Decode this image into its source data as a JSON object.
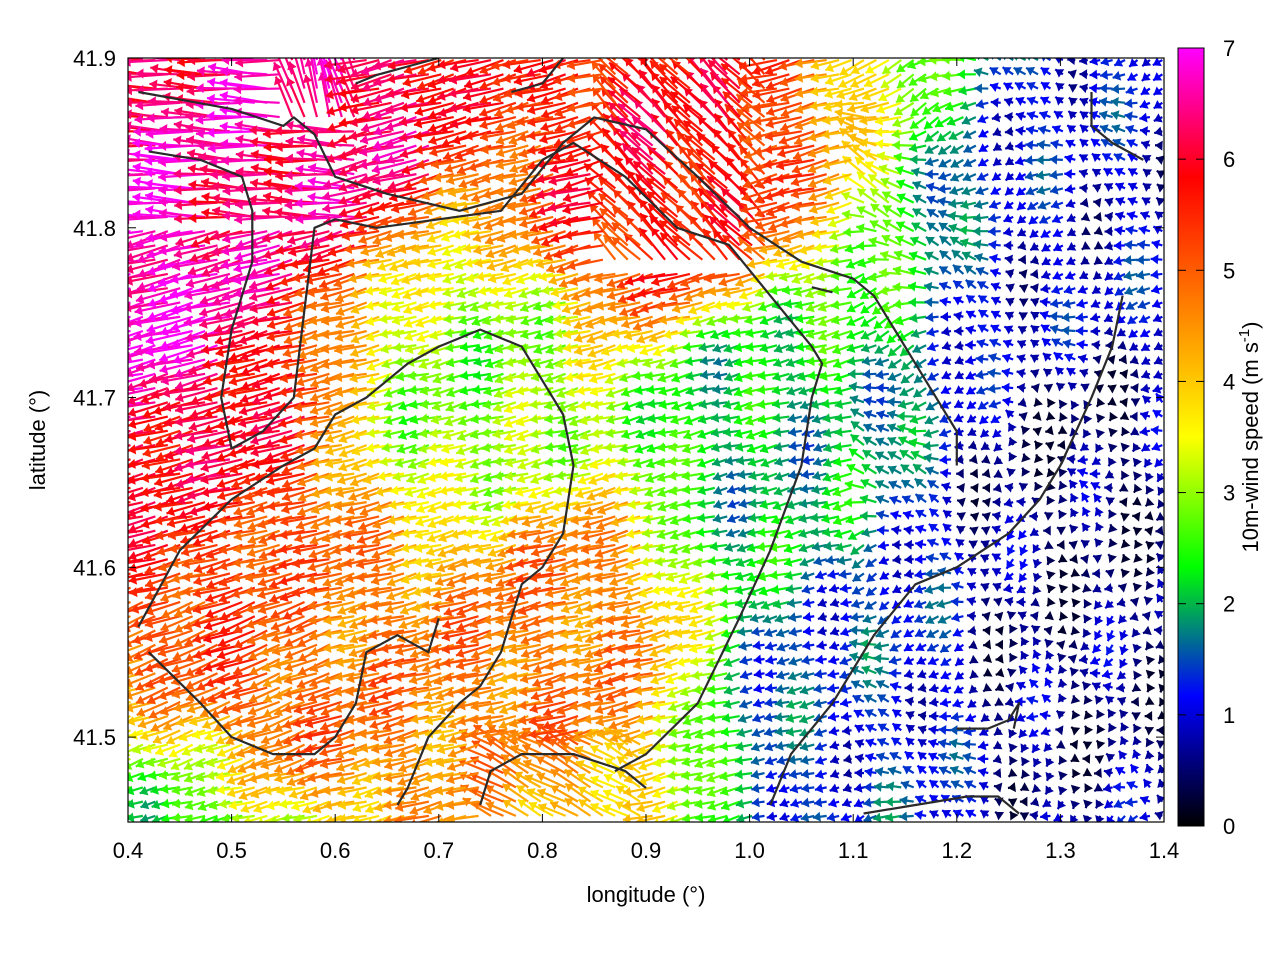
{
  "chart_data": {
    "type": "vector-field",
    "xlabel": "longitude (°)",
    "ylabel": "latitude (°)",
    "xlim": [
      0.4,
      1.4
    ],
    "ylim": [
      41.45,
      41.9
    ],
    "x_ticks": [
      "0.4",
      "0.5",
      "0.6",
      "0.7",
      "0.8",
      "0.9",
      "1.0",
      "1.1",
      "1.2",
      "1.3",
      "1.4"
    ],
    "y_ticks": [
      "41.5",
      "41.6",
      "41.7",
      "41.8",
      "41.9"
    ],
    "colorbar": {
      "label_main": "10m-wind speed (m s",
      "label_sup": "-1",
      "label_end": ")",
      "range": [
        0,
        7
      ],
      "ticks": [
        "0",
        "1",
        "2",
        "3",
        "4",
        "5",
        "6",
        "7"
      ],
      "colors": [
        "#000000",
        "#0000ff",
        "#00ff00",
        "#ffff00",
        "#ff8000",
        "#ff0000",
        "#ff00ff"
      ]
    },
    "wind_field": {
      "grid_spacing_deg": 0.012,
      "speed_hotspots": [
        {
          "lon": 0.41,
          "lat": 41.75,
          "speed": 7.0
        },
        {
          "lon": 0.45,
          "lat": 41.68,
          "speed": 6.2
        },
        {
          "lon": 0.48,
          "lat": 41.62,
          "speed": 5.4
        },
        {
          "lon": 0.52,
          "lat": 41.5,
          "speed": 6.0
        },
        {
          "lon": 0.93,
          "lat": 41.83,
          "speed": 5.8
        },
        {
          "lon": 0.82,
          "lat": 41.57,
          "speed": 4.8
        },
        {
          "lon": 0.6,
          "lat": 41.55,
          "speed": 4.8
        },
        {
          "lon": 0.58,
          "lat": 41.88,
          "speed": 6.5
        },
        {
          "lon": 1.33,
          "lat": 41.65,
          "speed": 0.5
        },
        {
          "lon": 1.3,
          "lat": 41.53,
          "speed": 0.6
        },
        {
          "lon": 1.36,
          "lat": 41.8,
          "speed": 1.0
        },
        {
          "lon": 1.12,
          "lat": 41.52,
          "speed": 1.3
        },
        {
          "lon": 0.5,
          "lat": 41.47,
          "speed": 1.4
        },
        {
          "lon": 1.02,
          "lat": 41.68,
          "speed": 2.0
        },
        {
          "lon": 0.75,
          "lat": 41.7,
          "speed": 2.8
        }
      ],
      "background_speed": 3.2
    },
    "contours": [
      [
        [
          0.41,
          41.88
        ],
        [
          0.5,
          41.87
        ],
        [
          0.55,
          41.86
        ],
        [
          0.56,
          41.865
        ],
        [
          0.58,
          41.855
        ],
        [
          0.6,
          41.83
        ],
        [
          0.65,
          41.82
        ],
        [
          0.72,
          41.81
        ],
        [
          0.78,
          41.82
        ],
        [
          0.82,
          41.85
        ],
        [
          0.85,
          41.865
        ],
        [
          0.9,
          41.858
        ],
        [
          0.95,
          41.83
        ],
        [
          1.0,
          41.8
        ],
        [
          1.05,
          41.78
        ],
        [
          1.1,
          41.77
        ],
        [
          1.12,
          41.76
        ],
        [
          1.15,
          41.73
        ],
        [
          1.18,
          41.7
        ],
        [
          1.2,
          41.68
        ],
        [
          1.2,
          41.66
        ]
      ],
      [
        [
          0.42,
          41.845
        ],
        [
          0.47,
          41.84
        ],
        [
          0.51,
          41.83
        ],
        [
          0.52,
          41.81
        ],
        [
          0.52,
          41.78
        ],
        [
          0.5,
          41.74
        ],
        [
          0.49,
          41.7
        ],
        [
          0.5,
          41.67
        ],
        [
          0.53,
          41.68
        ],
        [
          0.56,
          41.7
        ],
        [
          0.57,
          41.75
        ],
        [
          0.58,
          41.8
        ],
        [
          0.6,
          41.805
        ],
        [
          0.64,
          41.8
        ],
        [
          0.7,
          41.805
        ],
        [
          0.76,
          41.81
        ],
        [
          0.8,
          41.84
        ],
        [
          0.83,
          41.85
        ],
        [
          0.88,
          41.83
        ],
        [
          0.93,
          41.8
        ],
        [
          0.98,
          41.79
        ],
        [
          1.02,
          41.76
        ],
        [
          1.06,
          41.73
        ],
        [
          1.07,
          41.72
        ],
        [
          1.06,
          41.7
        ],
        [
          1.05,
          41.66
        ],
        [
          1.02,
          41.61
        ],
        [
          0.99,
          41.57
        ],
        [
          0.95,
          41.52
        ],
        [
          0.9,
          41.49
        ],
        [
          0.87,
          41.48
        ]
      ],
      [
        [
          0.41,
          41.565
        ],
        [
          0.45,
          41.61
        ],
        [
          0.5,
          41.64
        ],
        [
          0.55,
          41.66
        ],
        [
          0.58,
          41.67
        ],
        [
          0.6,
          41.69
        ],
        [
          0.63,
          41.7
        ],
        [
          0.67,
          41.72
        ],
        [
          0.7,
          41.73
        ],
        [
          0.74,
          41.74
        ],
        [
          0.78,
          41.73
        ],
        [
          0.8,
          41.71
        ],
        [
          0.82,
          41.69
        ],
        [
          0.83,
          41.66
        ],
        [
          0.82,
          41.62
        ],
        [
          0.8,
          41.6
        ],
        [
          0.78,
          41.59
        ],
        [
          0.76,
          41.55
        ],
        [
          0.74,
          41.53
        ],
        [
          0.72,
          41.52
        ],
        [
          0.69,
          41.5
        ],
        [
          0.67,
          41.47
        ],
        [
          0.66,
          41.46
        ]
      ],
      [
        [
          0.42,
          41.55
        ],
        [
          0.47,
          41.52
        ],
        [
          0.5,
          41.5
        ],
        [
          0.54,
          41.49
        ],
        [
          0.58,
          41.49
        ],
        [
          0.6,
          41.5
        ],
        [
          0.62,
          41.52
        ],
        [
          0.63,
          41.55
        ],
        [
          0.66,
          41.56
        ],
        [
          0.69,
          41.55
        ],
        [
          0.7,
          41.57
        ]
      ],
      [
        [
          0.74,
          41.46
        ],
        [
          0.75,
          41.48
        ],
        [
          0.78,
          41.49
        ],
        [
          0.83,
          41.49
        ],
        [
          0.88,
          41.48
        ],
        [
          0.9,
          41.47
        ]
      ],
      [
        [
          1.02,
          41.46
        ],
        [
          1.04,
          41.49
        ],
        [
          1.08,
          41.52
        ],
        [
          1.12,
          41.56
        ],
        [
          1.16,
          41.59
        ],
        [
          1.2,
          41.6
        ],
        [
          1.25,
          41.62
        ],
        [
          1.28,
          41.64
        ],
        [
          1.3,
          41.66
        ],
        [
          1.33,
          41.7
        ],
        [
          1.35,
          41.73
        ],
        [
          1.36,
          41.76
        ]
      ],
      [
        [
          1.11,
          41.455
        ],
        [
          1.16,
          41.46
        ],
        [
          1.21,
          41.465
        ],
        [
          1.24,
          41.465
        ],
        [
          1.26,
          41.455
        ]
      ],
      [
        [
          1.2,
          41.505
        ],
        [
          1.23,
          41.505
        ],
        [
          1.25,
          41.51
        ],
        [
          1.26,
          41.52
        ],
        [
          1.255,
          41.505
        ]
      ],
      [
        [
          1.06,
          41.765
        ],
        [
          1.08,
          41.762
        ]
      ],
      [
        [
          1.33,
          41.88
        ],
        [
          1.33,
          41.86
        ],
        [
          1.35,
          41.85
        ],
        [
          1.38,
          41.84
        ]
      ],
      [
        [
          0.77,
          41.88
        ],
        [
          0.8,
          41.885
        ],
        [
          0.82,
          41.9
        ]
      ],
      [
        [
          0.62,
          41.885
        ],
        [
          0.64,
          41.89
        ],
        [
          0.67,
          41.895
        ],
        [
          0.7,
          41.9
        ]
      ]
    ]
  }
}
